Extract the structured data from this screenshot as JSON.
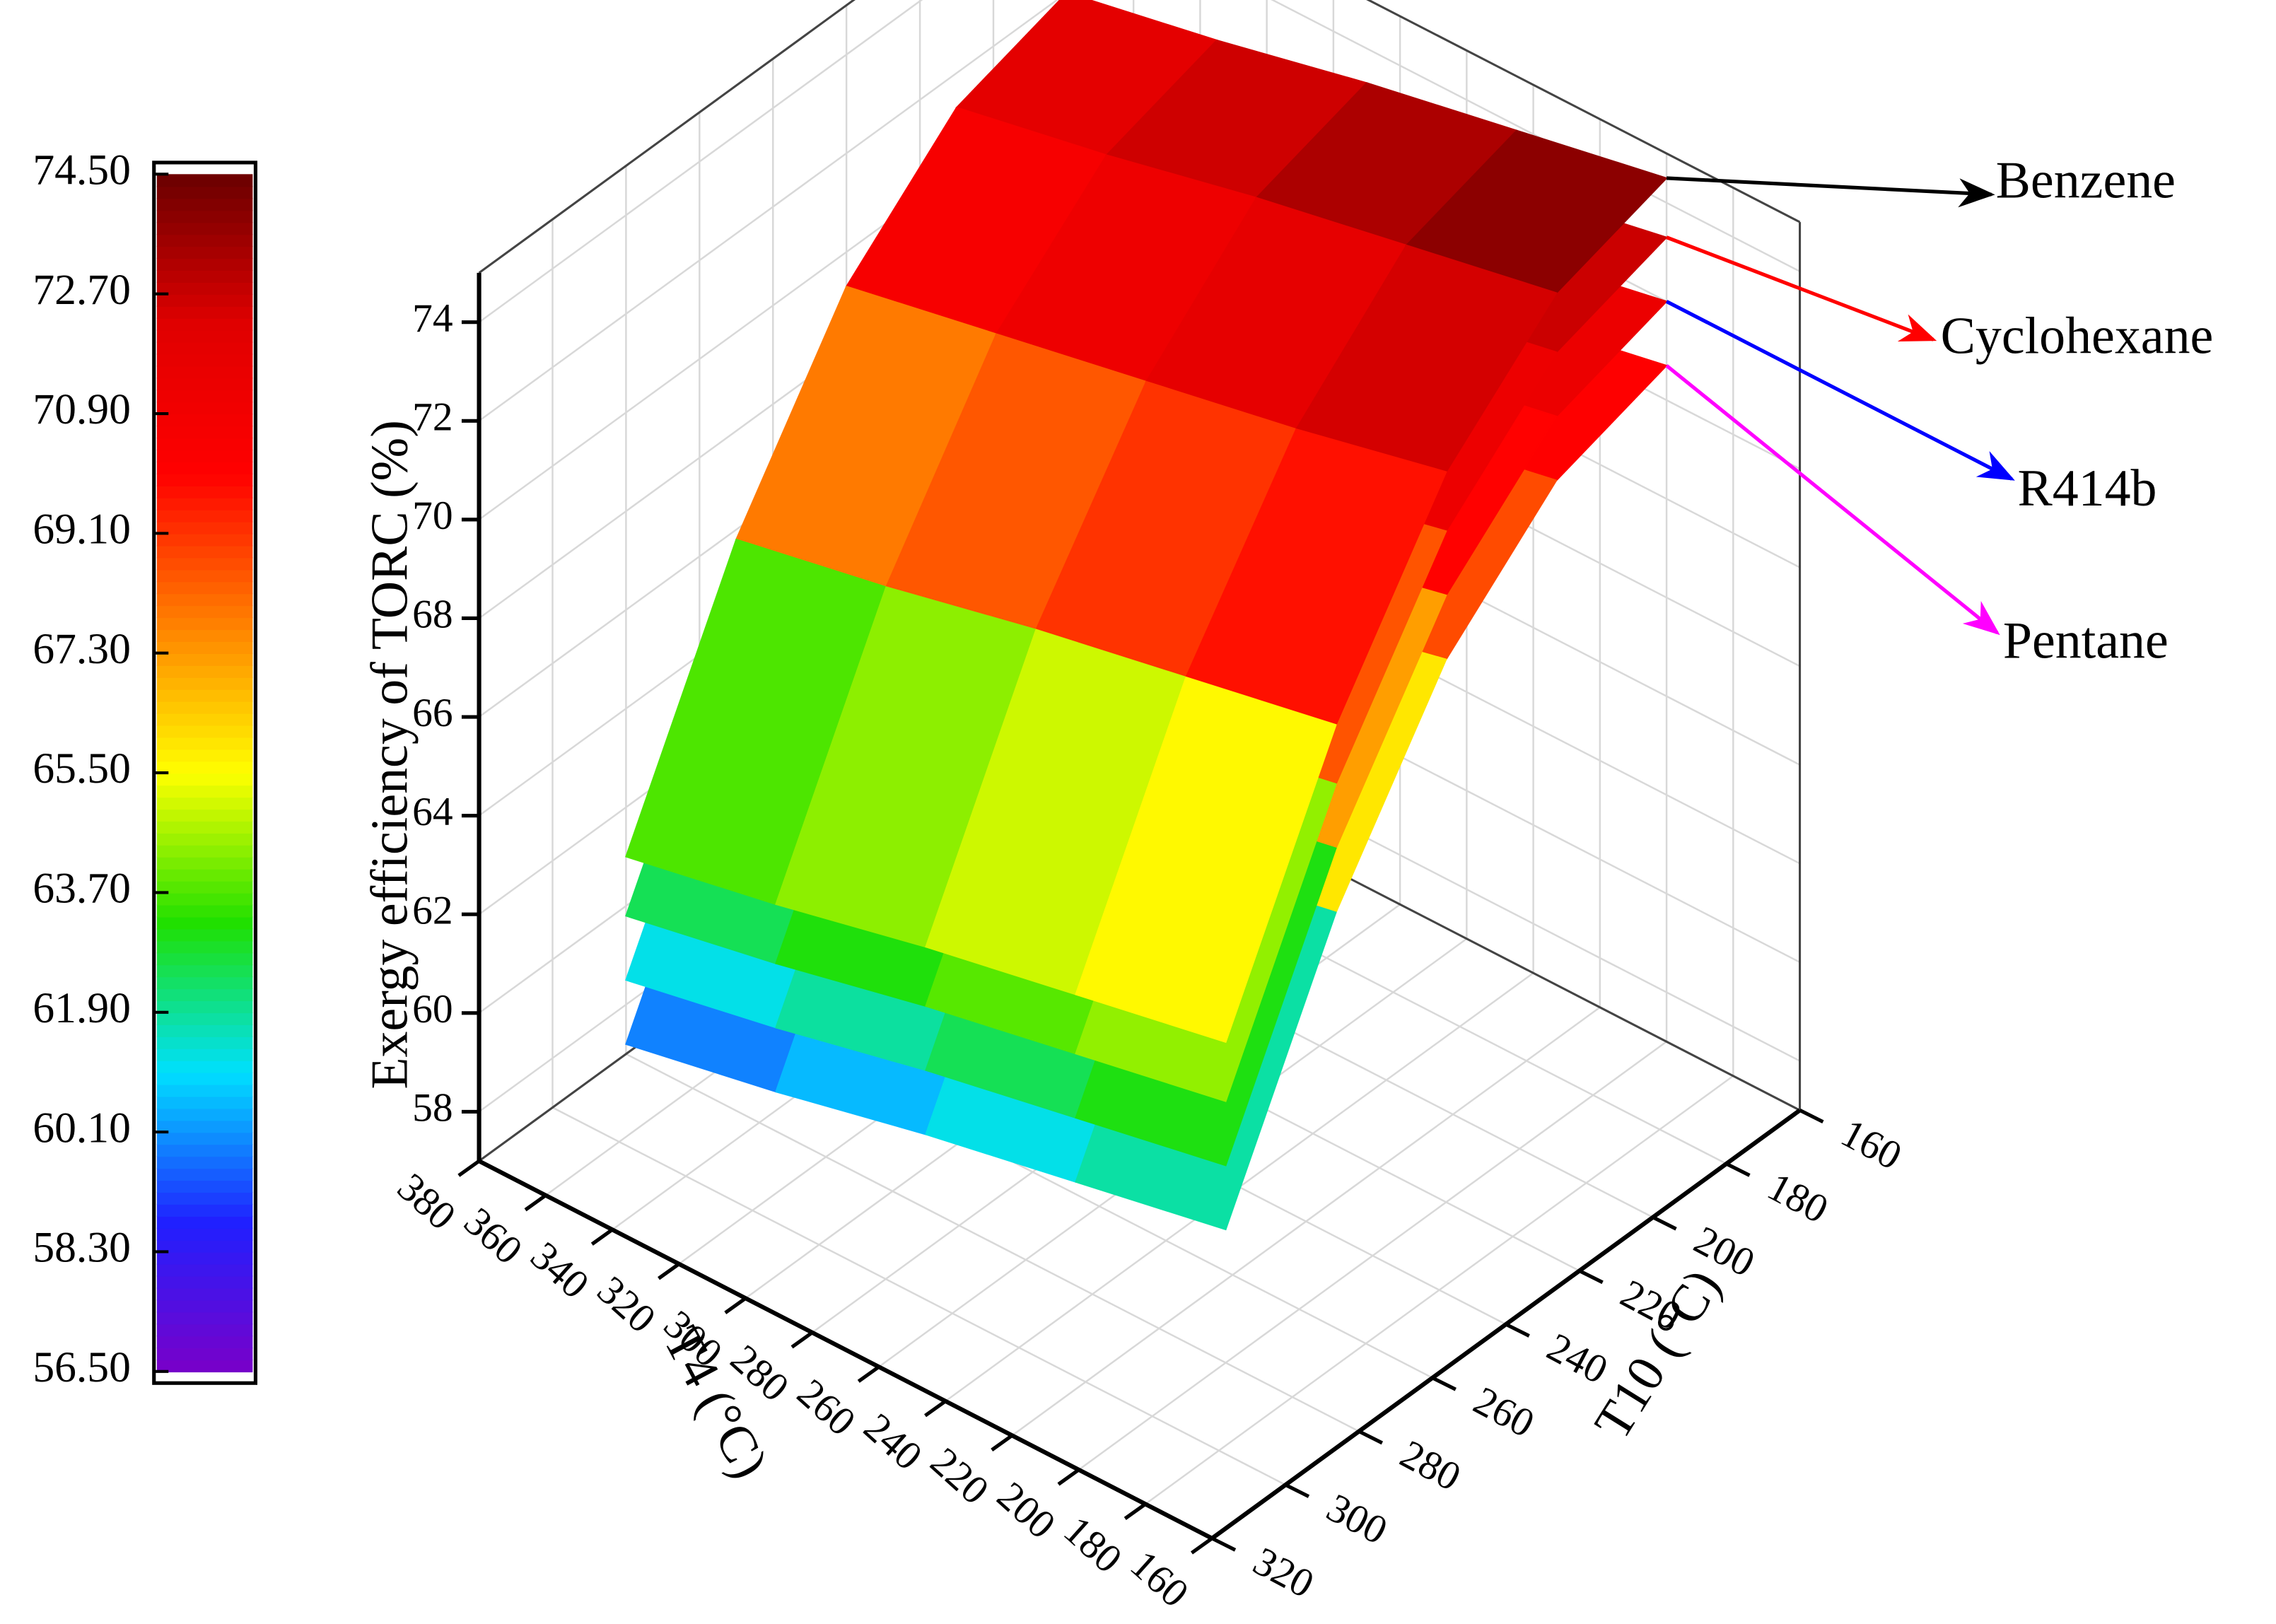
{
  "chart_data": {
    "type": "surface3d",
    "z_label": "Exergy efficiency of TORC (%)",
    "x_label": "T4 (°C)",
    "y_label": "T10 (°C)",
    "x": [
      200,
      245,
      290,
      335,
      380
    ],
    "y": [
      160,
      190,
      220,
      250,
      280
    ],
    "series": [
      {
        "name": "Benzene",
        "color": "#000000",
        "values": [
          [
            74.5,
            73.8,
            71.8,
            68.3,
            63.5
          ],
          [
            73.9,
            73.2,
            71.1,
            67.7,
            62.9
          ],
          [
            73.3,
            72.6,
            70.5,
            67.1,
            62.3
          ],
          [
            72.6,
            71.9,
            69.9,
            66.4,
            61.6
          ],
          [
            72.0,
            71.3,
            69.3,
            65.8,
            61.0
          ]
        ]
      },
      {
        "name": "Cyclohexane",
        "color": "#ff0000",
        "values": [
          [
            73.3,
            72.6,
            70.6,
            67.1,
            62.3
          ],
          [
            72.7,
            72.0,
            69.9,
            66.5,
            61.7
          ],
          [
            72.1,
            71.4,
            69.3,
            65.9,
            61.1
          ],
          [
            71.4,
            70.7,
            68.7,
            65.2,
            60.4
          ],
          [
            70.8,
            70.1,
            68.1,
            64.6,
            59.8
          ]
        ]
      },
      {
        "name": "R414b",
        "color": "#0000ff",
        "values": [
          [
            72.0,
            71.3,
            69.3,
            65.8,
            61.0
          ],
          [
            71.4,
            70.7,
            68.6,
            65.2,
            60.4
          ],
          [
            70.8,
            70.1,
            68.0,
            64.6,
            59.8
          ],
          [
            70.1,
            69.4,
            67.4,
            63.9,
            59.1
          ],
          [
            69.5,
            68.8,
            66.8,
            63.3,
            58.5
          ]
        ]
      },
      {
        "name": "Pentane",
        "color": "#ff00ff",
        "values": [
          [
            70.7,
            70.0,
            68.0,
            64.5,
            59.7
          ],
          [
            70.1,
            69.4,
            67.3,
            63.9,
            59.1
          ],
          [
            69.5,
            68.8,
            66.7,
            63.3,
            58.5
          ],
          [
            68.8,
            68.1,
            66.1,
            62.6,
            57.8
          ],
          [
            68.2,
            67.5,
            65.5,
            62.0,
            57.2
          ]
        ]
      }
    ],
    "xlim": [
      160,
      380
    ],
    "ylim": [
      160,
      320
    ],
    "zlim": [
      57,
      75
    ],
    "xticks": [
      160,
      180,
      200,
      220,
      240,
      260,
      280,
      300,
      320,
      340,
      360,
      380
    ],
    "yticks": [
      160,
      180,
      200,
      220,
      240,
      260,
      280,
      300,
      320
    ],
    "zticks": [
      58,
      60,
      62,
      64,
      66,
      68,
      70,
      72,
      74
    ],
    "grid": true,
    "colorbar": {
      "ticks": [
        {
          "value": 74.5,
          "label": "74.50"
        },
        {
          "value": 72.7,
          "label": "72.70"
        },
        {
          "value": 70.9,
          "label": "70.90"
        },
        {
          "value": 69.1,
          "label": "69.10"
        },
        {
          "value": 67.3,
          "label": "67.30"
        },
        {
          "value": 65.5,
          "label": "65.50"
        },
        {
          "value": 63.7,
          "label": "63.70"
        },
        {
          "value": 61.9,
          "label": "61.90"
        },
        {
          "value": 60.1,
          "label": "60.10"
        },
        {
          "value": 58.3,
          "label": "58.30"
        },
        {
          "value": 56.5,
          "label": "56.50"
        }
      ]
    },
    "colormap": [
      "#7a00c8",
      "#2020ff",
      "#00e0ff",
      "#20e000",
      "#ffff00",
      "#ff8000",
      "#ff0000",
      "#e00000",
      "#6a0000"
    ]
  }
}
